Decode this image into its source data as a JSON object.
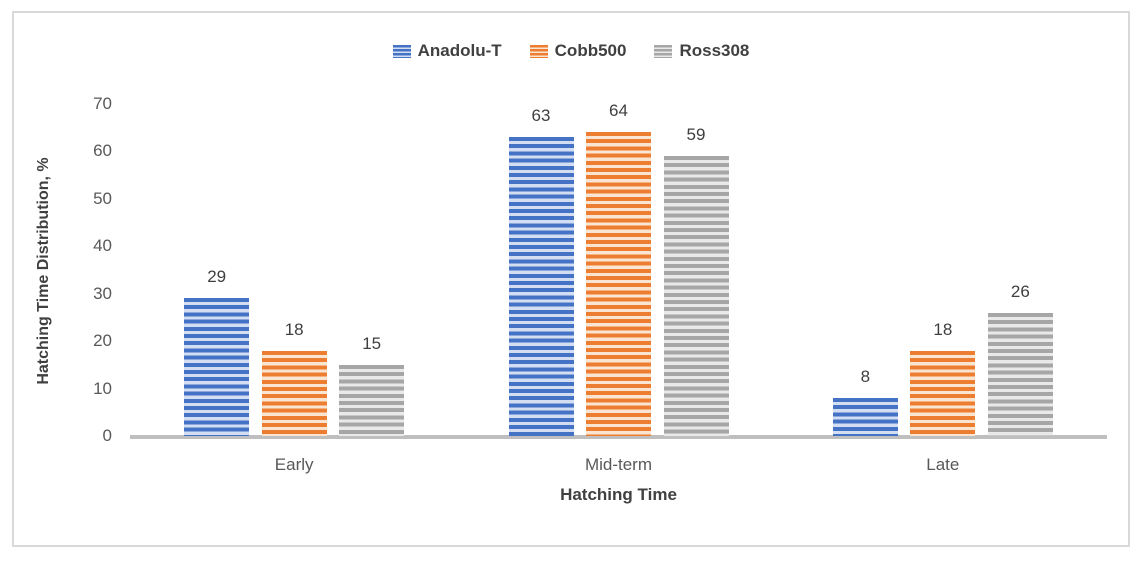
{
  "chart_data": {
    "type": "bar",
    "title": "",
    "categories": [
      "Early",
      "Mid-term",
      "Late"
    ],
    "series": [
      {
        "name": "Anadolu-T",
        "values": [
          29,
          63,
          8
        ],
        "color": "#4472C4",
        "stripe_light": "#D3DEF3"
      },
      {
        "name": "Cobb500",
        "values": [
          18,
          64,
          18
        ],
        "color": "#ED7D31",
        "stripe_light": "#FAE5D3"
      },
      {
        "name": "Ross308",
        "values": [
          15,
          59,
          26
        ],
        "color": "#A6A6A6",
        "stripe_light": "#E9E9E9"
      }
    ],
    "xlabel": "Hatching Time",
    "ylabel": "Hatching Time Distribution, %",
    "ylim": [
      0,
      70
    ],
    "yticks": [
      0,
      10,
      20,
      30,
      40,
      50,
      60,
      70
    ],
    "grid": false,
    "legend_position": "top",
    "data_labels": true,
    "pattern_fill": "horizontal-stripes",
    "axis_line_color": "#BFBFBF",
    "frame_border_color": "#D9D9D9",
    "text_color": "#404040",
    "tick_color": "#595959"
  }
}
